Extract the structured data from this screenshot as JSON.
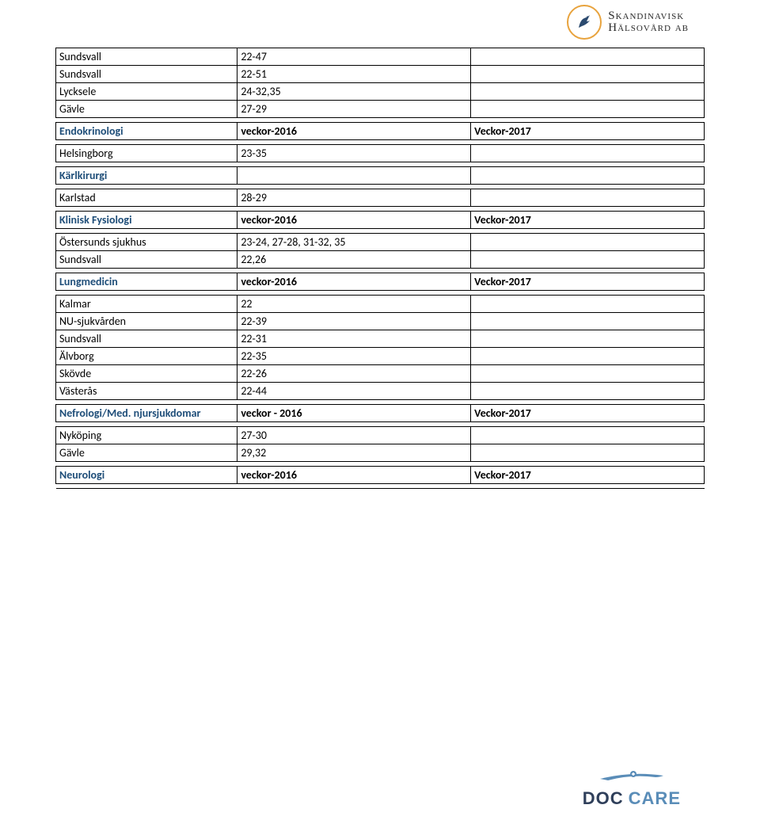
{
  "header": {
    "logo_line1": "Skandinavisk",
    "logo_line2": "Hälsovård ab",
    "logo_circle_border": "#e8a33d",
    "bird_color": "#2b4a6f"
  },
  "footer": {
    "brand_part1": "DOC",
    "brand_part2": "CARE",
    "swoosh_color": "#5a8db8"
  },
  "sections": [
    {
      "type": "data",
      "rows": [
        {
          "c1": "Sundsvall",
          "c2": "22-47",
          "c3": ""
        },
        {
          "c1": "Sundsvall",
          "c2": "22-51",
          "c3": ""
        },
        {
          "c1": "Lycksele",
          "c2": "24-32,35",
          "c3": ""
        },
        {
          "c1": "Gävle",
          "c2": "27-29",
          "c3": ""
        }
      ]
    },
    {
      "type": "header",
      "c1": "Endokrinologi",
      "c2": "veckor-2016",
      "c3": "Veckor-2017"
    },
    {
      "type": "data",
      "rows": [
        {
          "c1": "Helsingborg",
          "c2": "23-35",
          "c3": ""
        }
      ]
    },
    {
      "type": "header",
      "c1": "Kärlkirurgi",
      "c2": "",
      "c3": ""
    },
    {
      "type": "data",
      "rows": [
        {
          "c1": "Karlstad",
          "c2": "28-29",
          "c3": ""
        }
      ]
    },
    {
      "type": "header",
      "c1": "Klinisk Fysiologi",
      "c2": "veckor-2016",
      "c3": "Veckor-2017"
    },
    {
      "type": "data",
      "rows": [
        {
          "c1": "Östersunds sjukhus",
          "c2": "23-24, 27-28, 31-32, 35",
          "c3": ""
        },
        {
          "c1": "Sundsvall",
          "c2": "22,26",
          "c3": ""
        }
      ]
    },
    {
      "type": "header",
      "c1": "Lungmedicin",
      "c2": "veckor-2016",
      "c3": "Veckor-2017"
    },
    {
      "type": "data",
      "rows": [
        {
          "c1": "Kalmar",
          "c2": "22",
          "c3": ""
        },
        {
          "c1": "NU-sjukvården",
          "c2": "22-39",
          "c3": ""
        },
        {
          "c1": "Sundsvall",
          "c2": "22-31",
          "c3": ""
        },
        {
          "c1": "Älvborg",
          "c2": "22-35",
          "c3": ""
        },
        {
          "c1": "Skövde",
          "c2": "22-26",
          "c3": ""
        },
        {
          "c1": "Västerås",
          "c2": "22-44",
          "c3": ""
        }
      ]
    },
    {
      "type": "header",
      "c1": "Nefrologi/Med. njursjukdomar",
      "c2": "veckor - 2016",
      "c3": "Veckor-2017"
    },
    {
      "type": "data",
      "rows": [
        {
          "c1": "Nyköping",
          "c2": "27-30",
          "c3": ""
        },
        {
          "c1": "Gävle",
          "c2": "29,32",
          "c3": ""
        }
      ]
    },
    {
      "type": "header",
      "c1": "Neurologi",
      "c2": "veckor-2016",
      "c3": "Veckor-2017"
    }
  ]
}
